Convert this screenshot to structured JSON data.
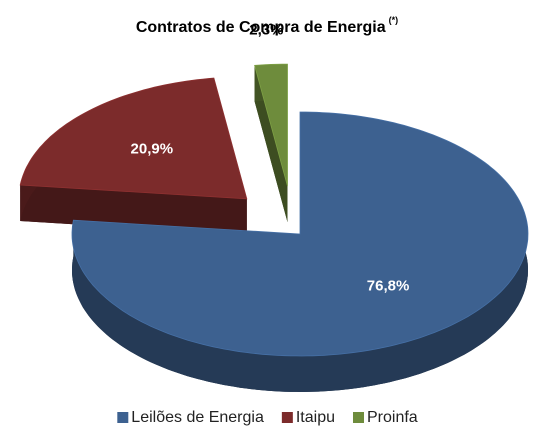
{
  "chart_data": {
    "type": "pie",
    "title": "Contratos de Compra de Energia",
    "title_note": "(*)",
    "categories": [
      "Leilões de Energia",
      "Itaipu",
      "Proinfa"
    ],
    "values": [
      76.8,
      20.9,
      2.3
    ],
    "value_labels": [
      "76,8%",
      "20,9%",
      "2,3%"
    ],
    "colors": [
      "#3d6190",
      "#7c2b2b",
      "#6e8c3c"
    ],
    "legend": "bottom"
  }
}
